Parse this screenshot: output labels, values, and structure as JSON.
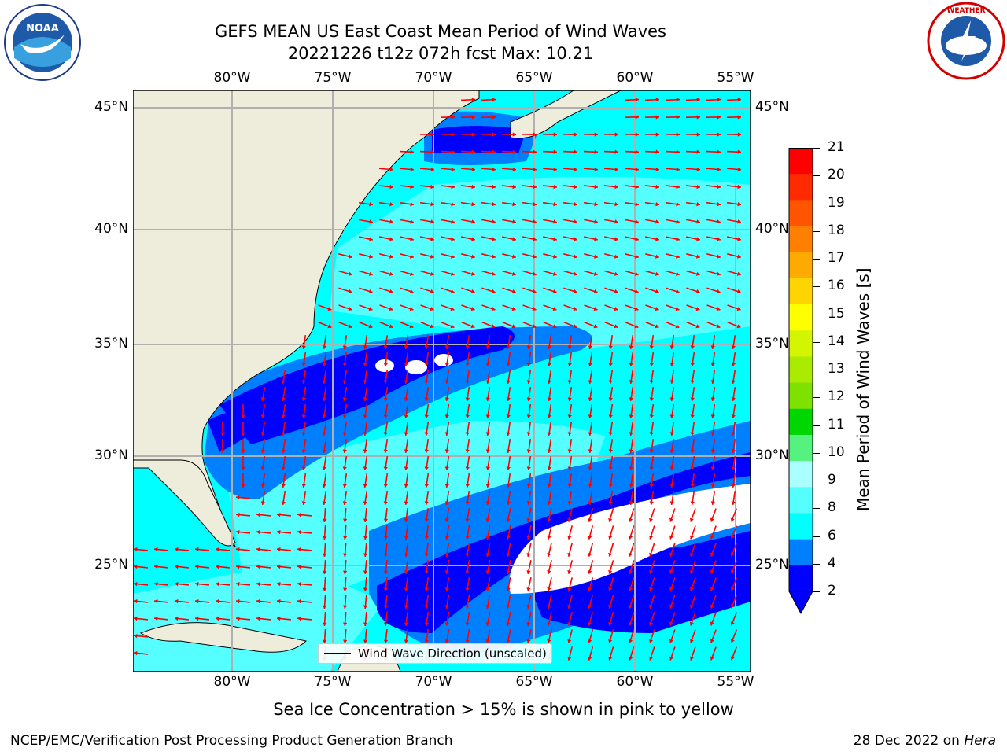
{
  "title": {
    "line1": "GEFS MEAN US East Coast Mean Period of Wind Waves",
    "line2": "20221226 t12z 072h fcst   Max: 10.21"
  },
  "logos": {
    "left": "NOAA",
    "right": "NATIONAL WEATHER SERVICE"
  },
  "axes": {
    "lon_ticks": [
      "80°W",
      "75°W",
      "70°W",
      "65°W",
      "60°W",
      "55°W"
    ],
    "lat_ticks": [
      "45°N",
      "40°N",
      "35°N",
      "30°N",
      "25°N"
    ]
  },
  "colorbar": {
    "label": "Mean Period of Wind Waves [s]",
    "ticks": [
      "21",
      "20",
      "19",
      "18",
      "17",
      "16",
      "15",
      "14",
      "13",
      "12",
      "11",
      "10",
      "9",
      "8",
      "6",
      "4",
      "2"
    ],
    "colors": [
      "#ff0000",
      "#ff2a00",
      "#ff5500",
      "#ff7f00",
      "#ffaa00",
      "#ffd400",
      "#ffff00",
      "#d4f500",
      "#aaeb00",
      "#7fe100",
      "#00d700",
      "#55f27f",
      "#aaffff",
      "#55ffff",
      "#00ffff",
      "#0080ff",
      "#0000ff"
    ]
  },
  "legend": {
    "label": "Wind Wave Direction (unscaled)"
  },
  "note": "Sea Ice Concentration > 15% is shown in pink to yellow",
  "footer": {
    "left": "NCEP/EMC/Verification Post Processing Product Generation Branch",
    "right_prefix": "28 Dec 2022 on",
    "right_machine": "Hera"
  },
  "colors": {
    "land": "#eeeddb",
    "ocean_cyan": "#00ffff",
    "ocean_light": "#55ffff",
    "ocean_mid": "#0080ff",
    "ocean_deep": "#0000ff",
    "arrows": "#ff0000",
    "grid": "#b0b0b0"
  }
}
